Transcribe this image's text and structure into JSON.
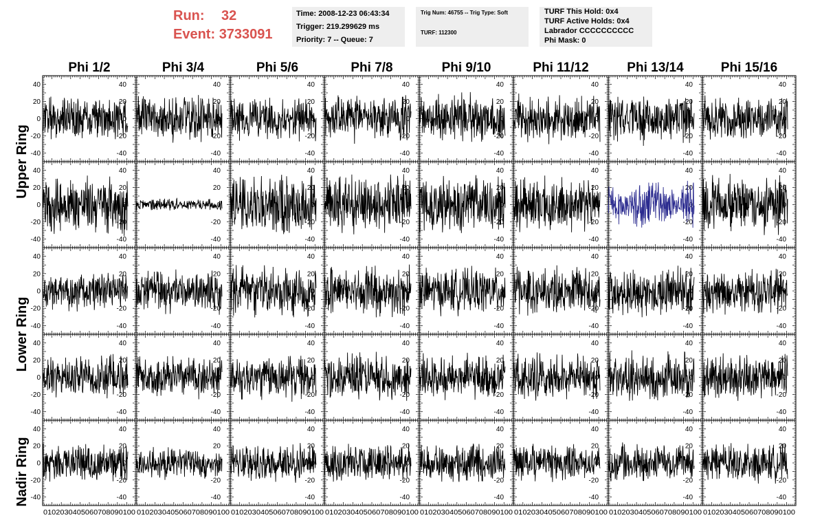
{
  "header": {
    "run_label": "Run:",
    "run_value": "32",
    "event_label": "Event:",
    "event_value": "3733091",
    "time": "Time: 2008-12-23 06:43:34",
    "trigger": "Trigger: 219.299629 ms",
    "priority": "Priority: 7 -- Queue: 7",
    "trig_num": "Trig Num: 46755 -- Trig Type: Soft",
    "turf": "TURF: 112300",
    "turf_this_hold": "TURF This Hold: 0x4",
    "turf_active_holds": "TURF Active Holds: 0x4",
    "labrador": "Labrador CCCCCCCCCC",
    "phi_mask": "Phi Mask: 0"
  },
  "colors": {
    "trace": "#000000",
    "highlight": "#2b2b8f",
    "header_red": "#d9534f",
    "box_bg": "#eeeeee"
  },
  "chart_data": {
    "type": "line",
    "columns": [
      "Phi 1/2",
      "Phi 3/4",
      "Phi 5/6",
      "Phi 7/8",
      "Phi 9/10",
      "Phi 11/12",
      "Phi 13/14",
      "Phi 15/16"
    ],
    "rows": [
      "Upper Ring",
      "",
      "Lower Ring",
      "",
      "Nadir Ring"
    ],
    "xlim": [
      0,
      100
    ],
    "ylim": [
      -50,
      50
    ],
    "y_ticks": [
      "40",
      "20",
      "0",
      "-20",
      "-40"
    ],
    "x_tick_string": "0 10 20 30 40 50 60 70 80 90 100",
    "traces": [
      [
        {
          "amp": 30,
          "seed": 11
        },
        {
          "amp": 32,
          "seed": 12
        },
        {
          "amp": 30,
          "seed": 13
        },
        {
          "amp": 30,
          "seed": 14
        },
        {
          "amp": 32,
          "seed": 15
        },
        {
          "amp": 30,
          "seed": 16
        },
        {
          "amp": 32,
          "seed": 17
        },
        {
          "amp": 30,
          "seed": 18
        }
      ],
      [
        {
          "amp": 38,
          "seed": 21
        },
        {
          "amp": 8,
          "seed": 22
        },
        {
          "amp": 40,
          "seed": 23
        },
        {
          "amp": 38,
          "seed": 24
        },
        {
          "amp": 40,
          "seed": 25
        },
        {
          "amp": 35,
          "seed": 26
        },
        {
          "amp": 28,
          "seed": 27,
          "highlight": true
        },
        {
          "amp": 38,
          "seed": 28
        }
      ],
      [
        {
          "amp": 25,
          "seed": 31
        },
        {
          "amp": 30,
          "seed": 32
        },
        {
          "amp": 32,
          "seed": 33
        },
        {
          "amp": 32,
          "seed": 34
        },
        {
          "amp": 30,
          "seed": 35
        },
        {
          "amp": 30,
          "seed": 36
        },
        {
          "amp": 32,
          "seed": 37
        },
        {
          "amp": 28,
          "seed": 38
        }
      ],
      [
        {
          "amp": 28,
          "seed": 41
        },
        {
          "amp": 28,
          "seed": 42
        },
        {
          "amp": 30,
          "seed": 43
        },
        {
          "amp": 32,
          "seed": 44
        },
        {
          "amp": 30,
          "seed": 45
        },
        {
          "amp": 30,
          "seed": 46
        },
        {
          "amp": 32,
          "seed": 47
        },
        {
          "amp": 30,
          "seed": 48
        }
      ],
      [
        {
          "amp": 25,
          "seed": 51
        },
        {
          "amp": 20,
          "seed": 52
        },
        {
          "amp": 25,
          "seed": 53
        },
        {
          "amp": 25,
          "seed": 54
        },
        {
          "amp": 25,
          "seed": 55
        },
        {
          "amp": 25,
          "seed": 56
        },
        {
          "amp": 25,
          "seed": 57
        },
        {
          "amp": 25,
          "seed": 58
        }
      ]
    ]
  }
}
